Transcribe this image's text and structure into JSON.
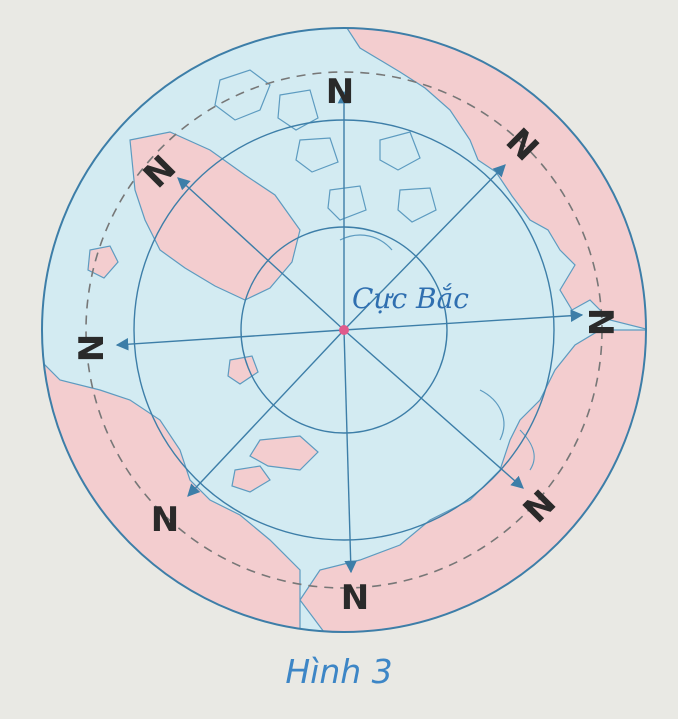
{
  "map": {
    "center_label": "Cực Bắc",
    "direction_label": "N",
    "colors": {
      "sea": "#d3ebf2",
      "land": "#f3cdcf",
      "coast": "#5d9bc0",
      "grid": "#3d7ea8",
      "pole": "#e05a8c",
      "paper": "#e9e9e4"
    }
  },
  "caption": "Hình 3"
}
